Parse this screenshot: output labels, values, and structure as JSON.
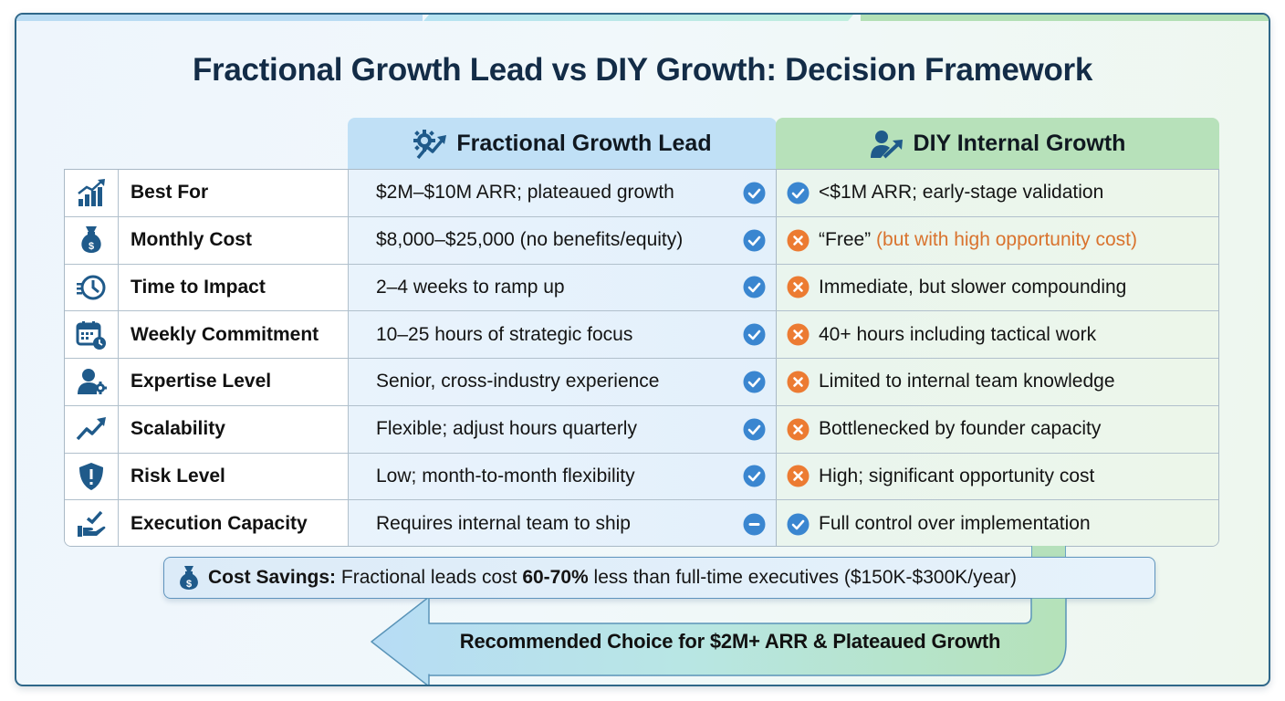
{
  "title": "Fractional Growth Lead vs DIY Growth: Decision Framework",
  "columns": {
    "fractional": {
      "label": "Fractional Growth Lead",
      "icon": "gear-growth-icon",
      "color": "#c0e0f6"
    },
    "diy": {
      "label": "DIY Internal Growth",
      "icon": "user-growth-icon",
      "color": "#b7e1ba"
    }
  },
  "colors": {
    "check": "#3a86d0",
    "cross": "#ec7b32",
    "title": "#132c47",
    "icon": "#1f5a8a"
  },
  "rows": [
    {
      "icon": "bar-chart-growth-icon",
      "label": "Best For",
      "fractional": "$2M–$10M ARR; plateaued growth",
      "fractional_status": "check",
      "diy": "<$1M ARR; early-stage validation",
      "diy_note": "",
      "diy_status": "check"
    },
    {
      "icon": "money-bag-icon",
      "label": "Monthly Cost",
      "fractional": "$8,000–$25,000 (no benefits/equity)",
      "fractional_status": "check",
      "diy": "“Free”",
      "diy_note": "(but with high opportunity cost)",
      "diy_status": "cross"
    },
    {
      "icon": "fast-clock-icon",
      "label": "Time to Impact",
      "fractional": "2–4 weeks to ramp up",
      "fractional_status": "check",
      "diy": "Immediate, but slower compounding",
      "diy_note": "",
      "diy_status": "cross"
    },
    {
      "icon": "calendar-clock-icon",
      "label": "Weekly Commitment",
      "fractional": "10–25 hours of strategic focus",
      "fractional_status": "check",
      "diy": "40+ hours including tactical work",
      "diy_note": "",
      "diy_status": "cross"
    },
    {
      "icon": "expert-gear-icon",
      "label": "Expertise Level",
      "fractional": "Senior, cross-industry experience",
      "fractional_status": "check",
      "diy": "Limited to internal team knowledge",
      "diy_note": "",
      "diy_status": "cross"
    },
    {
      "icon": "trend-up-icon",
      "label": "Scalability",
      "fractional": "Flexible; adjust hours quarterly",
      "fractional_status": "check",
      "diy": "Bottlenecked by founder capacity",
      "diy_note": "",
      "diy_status": "cross"
    },
    {
      "icon": "shield-alert-icon",
      "label": "Risk Level",
      "fractional": "Low; month-to-month flexibility",
      "fractional_status": "check",
      "diy": "High; significant opportunity cost",
      "diy_note": "",
      "diy_status": "cross"
    },
    {
      "icon": "hand-check-icon",
      "label": "Execution Capacity",
      "fractional": "Requires internal team to ship",
      "fractional_status": "neutral",
      "diy": "Full control over implementation",
      "diy_note": "",
      "diy_status": "check"
    }
  ],
  "savings": {
    "label": "Cost Savings:",
    "text_before": "Fractional leads cost",
    "highlight": "60-70%",
    "text_after": "less than full-time executives ($150K-$300K/year)"
  },
  "recommendation": "Recommended Choice for $2M+ ARR & Plateaued Growth"
}
